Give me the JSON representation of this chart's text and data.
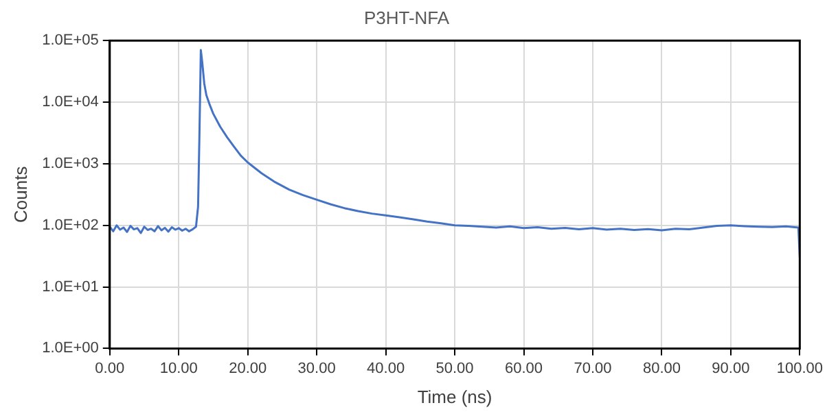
{
  "chart_data": {
    "type": "line",
    "title": "P3HT-NFA",
    "xlabel": "Time (ns)",
    "ylabel": "Counts",
    "log": "y",
    "grid": true,
    "legend": false,
    "marker": "none",
    "line_style": "solid",
    "xlim": [
      0,
      100
    ],
    "xticks": [
      {
        "value": 0,
        "label": "0.00"
      },
      {
        "value": 10,
        "label": "10.00"
      },
      {
        "value": 20,
        "label": "20.00"
      },
      {
        "value": 30,
        "label": "30.00"
      },
      {
        "value": 40,
        "label": "40.00"
      },
      {
        "value": 50,
        "label": "50.00"
      },
      {
        "value": 60,
        "label": "60.00"
      },
      {
        "value": 70,
        "label": "70.00"
      },
      {
        "value": 80,
        "label": "80.00"
      },
      {
        "value": 90,
        "label": "90.00"
      },
      {
        "value": 100,
        "label": "100.00"
      }
    ],
    "ylim": [
      1,
      100000
    ],
    "yticks": [
      {
        "value": 1,
        "label": "1.0E+00"
      },
      {
        "value": 10,
        "label": "1.0E+01"
      },
      {
        "value": 100,
        "label": "1.0E+02"
      },
      {
        "value": 1000,
        "label": "1.0E+03"
      },
      {
        "value": 10000,
        "label": "1.0E+04"
      },
      {
        "value": 100000,
        "label": "1.0E+05"
      }
    ],
    "series": [
      {
        "color": "#4472c4",
        "x": [
          0,
          0.5,
          1,
          1.5,
          2,
          2.5,
          3,
          3.5,
          4,
          4.5,
          5,
          5.5,
          6,
          6.5,
          7,
          7.5,
          8,
          8.5,
          9,
          9.5,
          10,
          10.5,
          11,
          11.5,
          12,
          12.5,
          12.8,
          13,
          13.2,
          13.4,
          13.7,
          14,
          14.5,
          15,
          16,
          17,
          18,
          19,
          20,
          22,
          24,
          26,
          28,
          30,
          32,
          34,
          36,
          38,
          40,
          42,
          44,
          46,
          48,
          50,
          52,
          54,
          56,
          58,
          60,
          62,
          64,
          66,
          68,
          70,
          72,
          74,
          76,
          78,
          80,
          82,
          84,
          86,
          88,
          90,
          92,
          94,
          96,
          98,
          99.8,
          100
        ],
        "values": [
          95,
          80,
          100,
          85,
          92,
          78,
          98,
          86,
          90,
          75,
          95,
          84,
          88,
          80,
          97,
          83,
          91,
          79,
          93,
          85,
          90,
          82,
          88,
          80,
          86,
          95,
          200,
          3000,
          70000,
          45000,
          20000,
          13000,
          9000,
          6500,
          4000,
          2700,
          1900,
          1350,
          1050,
          700,
          500,
          380,
          310,
          260,
          220,
          190,
          170,
          155,
          145,
          135,
          125,
          115,
          108,
          100,
          98,
          95,
          92,
          96,
          90,
          93,
          88,
          91,
          86,
          90,
          85,
          88,
          84,
          87,
          83,
          88,
          86,
          92,
          98,
          100,
          97,
          95,
          94,
          96,
          92,
          30
        ]
      }
    ]
  }
}
